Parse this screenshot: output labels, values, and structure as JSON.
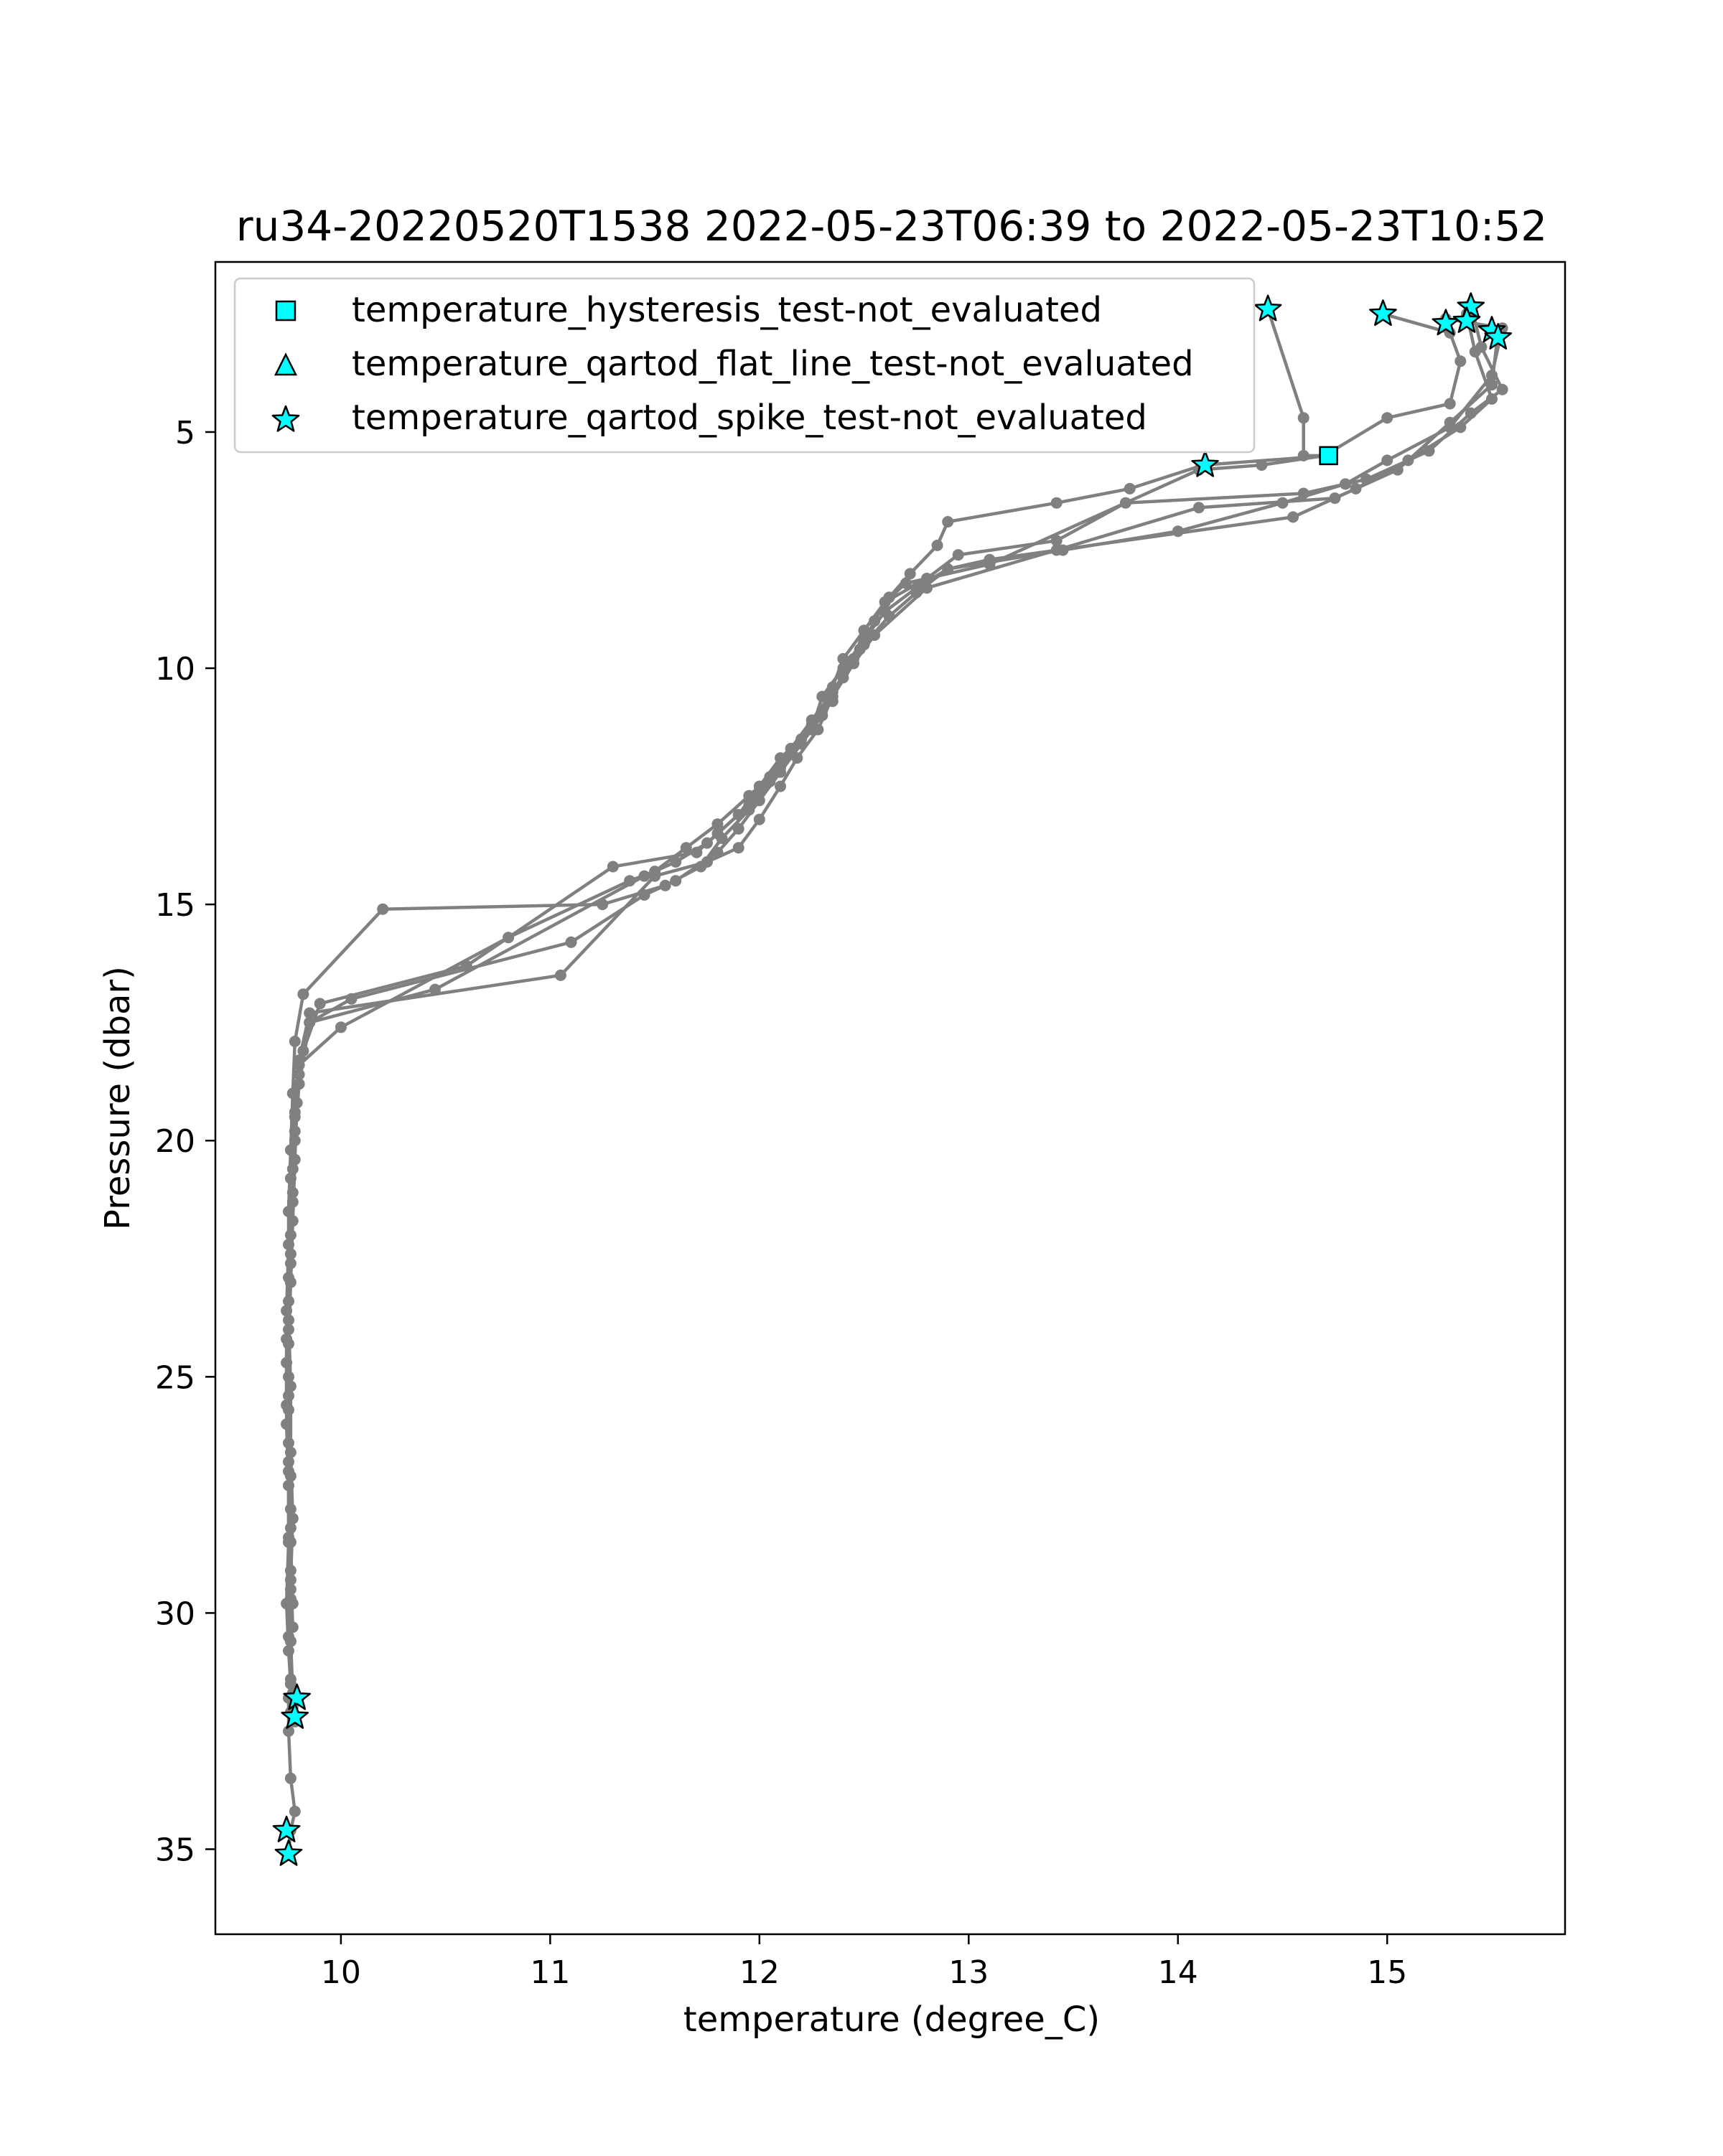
{
  "chart_data": {
    "type": "line",
    "title": "ru34-20220520T1538 2022-05-23T06:39 to 2022-05-23T10:52",
    "xlabel": "temperature (degree_C)",
    "ylabel": "Pressure (dbar)",
    "xlim": [
      9.4,
      15.85
    ],
    "ylim": [
      36.8,
      1.4
    ],
    "y_inverted": true,
    "xticks": [
      10,
      11,
      12,
      13,
      14,
      15
    ],
    "yticks": [
      5,
      10,
      15,
      20,
      25,
      30,
      35
    ],
    "grid": false,
    "legend_position": "top-left",
    "colors": {
      "profile": "#808080",
      "flag_fill": "#00ffff",
      "flag_edge": "#000000"
    },
    "legend": [
      {
        "marker": "square",
        "label": "temperature_hysteresis_test-not_evaluated"
      },
      {
        "marker": "triangle",
        "label": "temperature_qartod_flat_line_test-not_evaluated"
      },
      {
        "marker": "star",
        "label": "temperature_qartod_spike_test-not_evaluated"
      }
    ],
    "series": [
      {
        "x": [
          14.43,
          14.6,
          14.6,
          14.72,
          14.12,
          13.77,
          13.42,
          12.9,
          12.85,
          12.72,
          12.62,
          12.55,
          12.48,
          12.4,
          12.3,
          12.2,
          12.1,
          11.95,
          11.8,
          11.65,
          11.5,
          11.38,
          10.8,
          10.0,
          9.8,
          9.78,
          9.77,
          9.76,
          9.75,
          9.74,
          9.74,
          9.75,
          9.75,
          9.74,
          9.75,
          9.76,
          9.75,
          9.75,
          9.76,
          9.78,
          9.76,
          9.75
        ],
        "y": [
          2.4,
          4.7,
          5.5,
          5.5,
          5.7,
          6.2,
          6.5,
          6.9,
          7.4,
          8.0,
          8.5,
          9.0,
          9.6,
          10.2,
          10.9,
          11.5,
          12.1,
          12.7,
          13.3,
          13.8,
          14.3,
          14.5,
          15.7,
          17.6,
          18.4,
          19.4,
          20.6,
          22.0,
          23.4,
          24.7,
          26.0,
          27.3,
          28.5,
          29.8,
          30.8,
          31.5,
          31.8,
          32.5,
          33.5,
          34.2,
          34.6,
          35.1
        ]
      },
      {
        "x": [
          14.98,
          15.3,
          15.35,
          15.3,
          15.0,
          14.7,
          14.4,
          14.1,
          13.1,
          12.7,
          12.6,
          12.5,
          12.4,
          12.35,
          12.3,
          12.2,
          12.1,
          12.0,
          11.9,
          11.8,
          11.6,
          11.45,
          11.1,
          10.05,
          9.85,
          9.8,
          9.78,
          9.77,
          9.76,
          9.75,
          9.76,
          9.76,
          9.77,
          9.76,
          9.75,
          9.76,
          9.77,
          9.78
        ],
        "y": [
          2.5,
          2.9,
          3.5,
          4.4,
          4.7,
          5.5,
          5.7,
          5.8,
          7.8,
          8.2,
          8.6,
          9.2,
          9.8,
          10.4,
          11.0,
          11.6,
          12.2,
          12.8,
          13.4,
          13.9,
          14.5,
          14.8,
          15.8,
          17.0,
          17.5,
          18.6,
          19.8,
          21.1,
          22.4,
          23.8,
          25.2,
          26.6,
          28.0,
          29.3,
          30.5,
          31.4,
          32.0,
          32.3
        ]
      },
      {
        "x": [
          15.28,
          15.55,
          15.5,
          15.3,
          15.0,
          14.8,
          14.5,
          14.0,
          13.45,
          12.9,
          12.75,
          12.6,
          12.5,
          12.4,
          12.3,
          12.25,
          12.1,
          12.0,
          11.9,
          11.75,
          11.6,
          11.45,
          10.45,
          9.85,
          9.8,
          9.78,
          9.77,
          9.76,
          9.75,
          9.75,
          9.75,
          9.76,
          9.76,
          9.76,
          9.77
        ],
        "y": [
          2.6,
          2.8,
          3.8,
          4.9,
          5.6,
          6.1,
          6.5,
          7.1,
          7.5,
          7.9,
          8.3,
          8.8,
          9.4,
          10.0,
          10.6,
          11.3,
          11.9,
          12.5,
          13.1,
          13.7,
          14.1,
          14.4,
          16.8,
          17.5,
          18.8,
          20.0,
          21.3,
          22.6,
          24.0,
          25.4,
          26.8,
          28.2,
          29.5,
          30.6,
          31.9
        ]
      },
      {
        "x": [
          15.4,
          15.45,
          15.55,
          15.4,
          15.2,
          14.9,
          14.6,
          13.75,
          13.42,
          12.95,
          12.8,
          12.6,
          12.5,
          12.45,
          12.35,
          12.25,
          12.15,
          12.05,
          11.95,
          11.8,
          11.7,
          11.3,
          10.6,
          9.9,
          9.82,
          9.79,
          9.78,
          9.77,
          9.76,
          9.75,
          9.75,
          9.76,
          9.76,
          9.77
        ],
        "y": [
          2.3,
          3.2,
          4.1,
          4.6,
          5.4,
          6.0,
          6.3,
          6.5,
          7.3,
          7.6,
          8.1,
          8.6,
          9.2,
          9.8,
          10.5,
          11.1,
          11.7,
          12.3,
          12.9,
          13.5,
          13.9,
          14.2,
          16.3,
          17.1,
          18.1,
          19.2,
          20.4,
          21.7,
          23.0,
          24.3,
          25.7,
          27.1,
          28.5,
          29.8
        ]
      },
      {
        "x": [
          15.38,
          15.42,
          15.5,
          15.35,
          15.1,
          14.85,
          14.55,
          13.1,
          12.9,
          12.75,
          12.62,
          12.5,
          12.4,
          12.35,
          12.25,
          12.15,
          12.05,
          11.95,
          11.82,
          11.72,
          11.55,
          11.25,
          10.2,
          9.82,
          9.78,
          9.77,
          9.76,
          9.75,
          9.75,
          9.74,
          9.74,
          9.75,
          9.75,
          9.76,
          9.76,
          9.77,
          9.76
        ],
        "y": [
          2.5,
          3.3,
          4.3,
          4.9,
          5.6,
          6.2,
          6.8,
          7.7,
          7.9,
          8.4,
          8.9,
          9.5,
          10.1,
          10.7,
          11.2,
          11.8,
          12.4,
          13.0,
          13.6,
          14.2,
          14.6,
          15.0,
          15.1,
          16.9,
          17.9,
          19.0,
          20.2,
          21.5,
          22.9,
          24.2,
          25.6,
          27.0,
          28.4,
          29.7,
          30.6,
          31.7,
          32.1
        ]
      },
      {
        "x": [
          15.53,
          15.5,
          15.3,
          15.05,
          14.75,
          14.1,
          13.42,
          12.8,
          12.55,
          12.45,
          12.35,
          12.28,
          12.18,
          12.1,
          12.0,
          11.9,
          11.75,
          11.5,
          11.05,
          9.85,
          9.8,
          9.78,
          9.76,
          9.75,
          9.74,
          9.75,
          9.75,
          9.76,
          9.76,
          9.77
        ],
        "y": [
          2.9,
          4.0,
          4.8,
          5.8,
          6.4,
          6.6,
          7.5,
          8.3,
          9.3,
          9.9,
          10.6,
          11.3,
          11.9,
          12.5,
          13.2,
          13.8,
          14.1,
          14.4,
          16.5,
          17.3,
          18.3,
          19.5,
          20.8,
          22.2,
          23.6,
          25.0,
          26.4,
          27.8,
          29.1,
          30.3
        ]
      }
    ],
    "flags": {
      "hysteresis": [
        {
          "x": 14.72,
          "y": 5.5
        }
      ],
      "flat_line": [],
      "spike": [
        {
          "x": 14.43,
          "y": 2.4
        },
        {
          "x": 14.98,
          "y": 2.5
        },
        {
          "x": 15.28,
          "y": 2.7
        },
        {
          "x": 15.4,
          "y": 2.35
        },
        {
          "x": 15.38,
          "y": 2.65
        },
        {
          "x": 15.5,
          "y": 2.85
        },
        {
          "x": 15.53,
          "y": 3.0
        },
        {
          "x": 14.13,
          "y": 5.7
        },
        {
          "x": 9.79,
          "y": 31.8
        },
        {
          "x": 9.78,
          "y": 32.2
        },
        {
          "x": 9.74,
          "y": 34.6
        },
        {
          "x": 9.75,
          "y": 35.1
        }
      ]
    }
  }
}
